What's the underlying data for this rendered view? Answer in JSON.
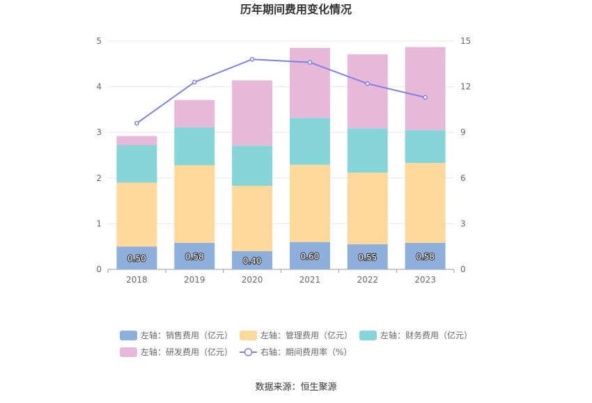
{
  "chart_data": {
    "type": "bar",
    "stacked": true,
    "title": "历年期间费用变化情况",
    "source": "数据来源：恒生聚源",
    "categories": [
      "2018",
      "2019",
      "2020",
      "2021",
      "2022",
      "2023"
    ],
    "ylim_left": [
      0,
      5
    ],
    "yticks_left": [
      "0",
      "1",
      "2",
      "3",
      "4",
      "5"
    ],
    "ylim_right": [
      0,
      15
    ],
    "yticks_right": [
      "0",
      "3",
      "6",
      "9",
      "12",
      "15"
    ],
    "grid": true,
    "legend_position": "bottom",
    "series": [
      {
        "name": "左轴：销售费用（亿元）",
        "type": "bar",
        "axis": "left",
        "color": "#8eaedb",
        "values": [
          0.5,
          0.58,
          0.4,
          0.6,
          0.55,
          0.58
        ],
        "labels": [
          "0.50",
          "0.58",
          "0.40",
          "0.60",
          "0.55",
          "0.58"
        ]
      },
      {
        "name": "左轴：管理费用（亿元）",
        "type": "bar",
        "axis": "left",
        "color": "#fed89b",
        "values": [
          1.4,
          1.7,
          1.43,
          1.69,
          1.57,
          1.75
        ]
      },
      {
        "name": "左轴：财务费用（亿元）",
        "type": "bar",
        "axis": "left",
        "color": "#86d5d8",
        "values": [
          0.82,
          0.83,
          0.88,
          1.03,
          0.97,
          0.72
        ]
      },
      {
        "name": "左轴：研发费用（亿元）",
        "type": "bar",
        "axis": "left",
        "color": "#e7b9d8",
        "values": [
          0.2,
          0.6,
          1.43,
          1.53,
          1.62,
          1.82
        ]
      },
      {
        "name": "右轴：期间费用率（%）",
        "type": "line",
        "axis": "right",
        "color": "#7b80e8",
        "values": [
          9.6,
          12.3,
          13.8,
          13.6,
          12.2,
          11.3
        ]
      }
    ]
  }
}
